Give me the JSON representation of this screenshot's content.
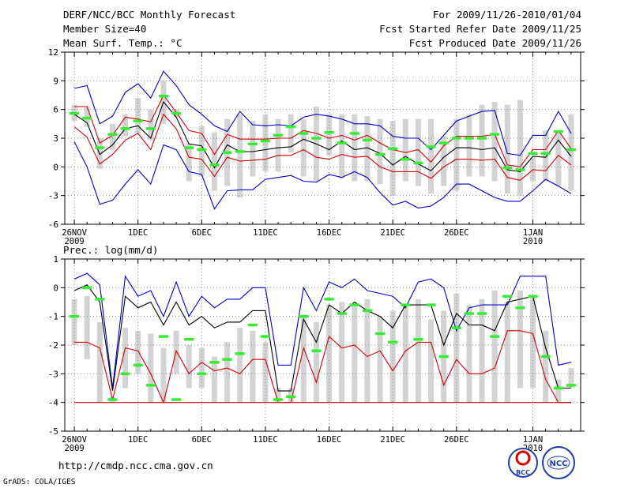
{
  "header": {
    "title": "DERF/NCC/BCC Monthly Forecast",
    "member_size": "Member Size=40",
    "variable": "Mean Surf. Temp.: °C",
    "period": "For 2009/11/26-2010/01/04",
    "start_date": "Fcst Started Refer Date 2009/11/25",
    "produced_date": "Fcst Produced Date 2009/11/26"
  },
  "footer": {
    "url": "http://cmdp.ncc.cma.gov.cn",
    "credit": "GrADS: COLA/IGES",
    "logo_bcc_text": "BCC",
    "logo_ncc_text": "NCC"
  },
  "colors": {
    "envelope": "#0000cc",
    "spread": "#d40000",
    "mean": "#000000",
    "bars": "#d3d3d3",
    "obs": "#33ee33",
    "grid": "#888888"
  },
  "chart_data": [
    {
      "type": "line",
      "title": "Mean Surf. Temp.: °C",
      "x_tick_labels": [
        "26NOV",
        "1DEC",
        "6DEC",
        "11DEC",
        "16DEC",
        "21DEC",
        "26DEC",
        "1JAN"
      ],
      "x_tick_sublabels": [
        "2009",
        "",
        "",
        "",
        "",
        "",
        "",
        "2010"
      ],
      "x_tick_days": [
        1,
        6,
        11,
        16,
        21,
        26,
        31,
        37
      ],
      "xlim": [
        0.25,
        40.75
      ],
      "ylim": [
        -6,
        12
      ],
      "y_ticks": [
        -6,
        -3,
        0,
        3,
        6,
        9,
        12
      ],
      "days": [
        1,
        2,
        3,
        4,
        5,
        6,
        7,
        8,
        9,
        10,
        11,
        12,
        13,
        14,
        15,
        16,
        17,
        18,
        19,
        20,
        21,
        22,
        23,
        24,
        25,
        26,
        27,
        28,
        29,
        30,
        31,
        32,
        33,
        34,
        35,
        36,
        37,
        38,
        39,
        40
      ],
      "series": [
        {
          "name": "max",
          "values": [
            8.2,
            8.5,
            4.5,
            5.3,
            7.8,
            8.7,
            7.2,
            10.0,
            8.5,
            6.5,
            5.5,
            4.3,
            3.7,
            5.8,
            4.4,
            4.3,
            4.4,
            4.3,
            5.2,
            5.5,
            5.3,
            5.0,
            4.5,
            4.5,
            4.3,
            3.2,
            3.0,
            3.0,
            1.8,
            3.3,
            4.8,
            5.3,
            5.8,
            5.9,
            1.4,
            1.2,
            3.3,
            3.3,
            5.8,
            3.5
          ]
        },
        {
          "name": "q_upper",
          "values": [
            6.3,
            6.3,
            2.5,
            3.3,
            5.2,
            5.0,
            4.7,
            7.5,
            5.7,
            3.8,
            3.5,
            1.3,
            3.4,
            2.9,
            2.9,
            2.9,
            3.0,
            3.0,
            3.8,
            3.5,
            3.0,
            3.3,
            2.8,
            3.3,
            2.5,
            1.8,
            1.5,
            1.8,
            0.5,
            2.2,
            3.2,
            3.2,
            3.2,
            3.4,
            0.2,
            0.0,
            1.8,
            1.8,
            3.8,
            1.9
          ]
        },
        {
          "name": "mean",
          "values": [
            5.5,
            4.6,
            1.3,
            2.3,
            4.0,
            4.3,
            3.0,
            6.8,
            5.2,
            2.4,
            2.2,
            -0.1,
            2.3,
            1.6,
            1.6,
            1.8,
            2.0,
            2.1,
            2.9,
            2.4,
            1.8,
            2.7,
            1.8,
            2.0,
            1.4,
            0.2,
            1.1,
            0.3,
            -0.4,
            1.0,
            2.0,
            2.0,
            1.8,
            2.0,
            -0.3,
            -0.5,
            1.1,
            1.0,
            2.8,
            1.1
          ]
        },
        {
          "name": "q_lower",
          "values": [
            4.2,
            3.1,
            0.3,
            1.3,
            2.8,
            3.5,
            1.8,
            5.5,
            4.0,
            1.0,
            0.8,
            -1.0,
            1.0,
            0.6,
            0.7,
            0.8,
            1.2,
            1.2,
            1.8,
            1.0,
            0.8,
            1.3,
            1.0,
            1.1,
            0.0,
            -0.5,
            -0.5,
            -0.5,
            -1.2,
            0.0,
            0.8,
            0.8,
            0.7,
            0.8,
            -1.1,
            -1.4,
            -0.3,
            -0.4,
            1.2,
            0.2
          ]
        },
        {
          "name": "min",
          "values": [
            2.6,
            0.0,
            -3.9,
            -3.5,
            -1.8,
            -0.3,
            -1.8,
            2.3,
            1.8,
            -0.5,
            -0.8,
            -4.4,
            -2.5,
            -2.4,
            -2.4,
            -1.3,
            -1.1,
            -0.9,
            -1.5,
            -1.6,
            -0.8,
            -1.1,
            -0.5,
            -1.1,
            -2.7,
            -4.0,
            -3.6,
            -4.3,
            -4.1,
            -3.2,
            -1.8,
            -1.8,
            -2.5,
            -3.2,
            -3.6,
            -3.6,
            -2.5,
            -1.3,
            -2.0,
            -2.8
          ]
        },
        {
          "name": "spread_low",
          "values": [
            4.8,
            4.2,
            -0.2,
            1.8,
            3.2,
            3.5,
            2.8,
            4.5,
            5.2,
            -1.5,
            -1.0,
            -2.5,
            -2.0,
            -3.2,
            -1.0,
            -0.5,
            -0.5,
            1.5,
            -1.0,
            -1.5,
            1.2,
            -1.2,
            -1.5,
            -1.5,
            -1.8,
            -3.0,
            -1.5,
            -2.0,
            -2.8,
            -2.0,
            -2.5,
            -1.0,
            -1.0,
            -1.5,
            -2.8,
            -3.0,
            -1.5,
            -1.5,
            -2.0,
            -2.5
          ]
        },
        {
          "name": "spread_high",
          "values": [
            6.5,
            6.3,
            3.0,
            4.5,
            5.5,
            7.2,
            6.0,
            9.0,
            6.0,
            2.5,
            4.3,
            3.6,
            5.0,
            5.5,
            4.8,
            5.5,
            5.0,
            5.5,
            5.0,
            6.3,
            5.5,
            5.5,
            5.5,
            5.3,
            5.0,
            4.8,
            5.0,
            5.0,
            5.0,
            3.2,
            5.0,
            5.5,
            6.5,
            6.8,
            6.5,
            7.0,
            1.0,
            3.8,
            3.8,
            5.5
          ]
        },
        {
          "name": "observed",
          "values": [
            5.6,
            5.1,
            2.0,
            3.4,
            4.0,
            4.8,
            4.0,
            7.4,
            5.6,
            2.0,
            1.8,
            0.2,
            1.5,
            1.6,
            2.4,
            2.7,
            3.3,
            4.2,
            3.5,
            3.0,
            3.6,
            2.5,
            3.5,
            2.8,
            1.3,
            1.9,
            0.8,
            0.4,
            2.1,
            2.5,
            3.0,
            3.0,
            3.0,
            3.4,
            -0.1,
            -0.3,
            1.4,
            1.4,
            3.7,
            1.8
          ]
        }
      ]
    },
    {
      "type": "line",
      "title": "Prec.: log(mm/d)",
      "x_tick_labels": [
        "26NOV",
        "1DEC",
        "6DEC",
        "11DEC",
        "16DEC",
        "21DEC",
        "26DEC",
        "1JAN"
      ],
      "x_tick_sublabels": [
        "2009",
        "",
        "",
        "",
        "",
        "",
        "",
        "2010"
      ],
      "x_tick_days": [
        1,
        6,
        11,
        16,
        21,
        26,
        31,
        37
      ],
      "xlim": [
        0.25,
        40.75
      ],
      "ylim": [
        -5,
        1
      ],
      "y_ticks": [
        -5,
        -4,
        -3,
        -2,
        -1,
        0,
        1
      ],
      "days": [
        1,
        2,
        3,
        4,
        5,
        6,
        7,
        8,
        9,
        10,
        11,
        12,
        13,
        14,
        15,
        16,
        17,
        18,
        19,
        20,
        21,
        22,
        23,
        24,
        25,
        26,
        27,
        28,
        29,
        30,
        31,
        32,
        33,
        34,
        35,
        36,
        37,
        38,
        39,
        40
      ],
      "series": [
        {
          "name": "max",
          "values": [
            0.3,
            0.5,
            0.1,
            -3.5,
            0.4,
            -0.3,
            -0.1,
            -1.0,
            0.2,
            -1.0,
            -0.3,
            -0.7,
            -0.4,
            -0.4,
            0.0,
            0.0,
            -2.7,
            -2.7,
            0.0,
            -0.8,
            0.2,
            0.0,
            0.3,
            -0.1,
            -0.2,
            -0.3,
            -0.7,
            0.2,
            0.3,
            0.0,
            -1.5,
            -0.7,
            -0.6,
            -0.6,
            -0.6,
            0.4,
            0.4,
            0.4,
            -2.7,
            -2.6
          ]
        },
        {
          "name": "mean",
          "values": [
            -0.1,
            0.1,
            -0.5,
            -3.6,
            -0.3,
            -0.7,
            -0.5,
            -1.3,
            -0.5,
            -1.3,
            -1.0,
            -1.4,
            -1.2,
            -1.2,
            -0.8,
            -0.8,
            -3.6,
            -3.6,
            -1.1,
            -1.9,
            -0.6,
            -0.9,
            -0.5,
            -0.8,
            -1.0,
            -1.4,
            -0.6,
            -0.6,
            -0.6,
            -2.0,
            -0.9,
            -1.3,
            -1.3,
            -1.5,
            -0.5,
            -0.4,
            -0.3,
            -2.1,
            -3.5,
            -3.5
          ]
        },
        {
          "name": "low",
          "values": [
            -1.9,
            -1.9,
            -2.1,
            -3.9,
            -2.1,
            -2.2,
            -3.0,
            -4.0,
            -2.2,
            -3.0,
            -2.6,
            -2.9,
            -2.8,
            -3.0,
            -2.5,
            -2.5,
            -4.0,
            -4.0,
            -2.1,
            -3.3,
            -1.7,
            -2.1,
            -2.0,
            -2.4,
            -2.2,
            -2.9,
            -2.2,
            -1.9,
            -1.9,
            -3.4,
            -2.5,
            -3.0,
            -3.0,
            -2.8,
            -1.5,
            -1.5,
            -1.6,
            -3.2,
            -4.0,
            -4.0
          ]
        },
        {
          "name": "spread_low",
          "values": [
            -2.0,
            -2.5,
            -4.0,
            -4.0,
            -3.5,
            -3.0,
            -4.0,
            -4.0,
            -3.0,
            -3.5,
            -3.5,
            -4.0,
            -4.0,
            -4.0,
            -4.0,
            -4.0,
            -4.0,
            -4.0,
            -4.0,
            -4.0,
            -4.0,
            -4.0,
            -4.0,
            -4.0,
            -4.0,
            -4.0,
            -4.0,
            -4.0,
            -4.0,
            -4.0,
            -4.0,
            -4.0,
            -4.0,
            -4.0,
            -4.0,
            -3.5,
            -3.5,
            -4.0,
            -4.0,
            -3.5
          ]
        },
        {
          "name": "spread_high",
          "values": [
            -0.4,
            -0.3,
            -1.2,
            -3.8,
            -1.4,
            -1.5,
            -1.6,
            -2.1,
            -1.5,
            -2.0,
            -2.1,
            -2.4,
            -1.9,
            -1.4,
            -1.5,
            -1.9,
            -3.5,
            -3.5,
            -1.0,
            -1.2,
            -0.6,
            -0.5,
            -0.6,
            -0.4,
            -1.0,
            -0.8,
            -0.6,
            -0.4,
            -1.1,
            -0.8,
            -0.2,
            -0.6,
            -0.4,
            -0.1,
            -0.5,
            -0.1,
            -0.3,
            -1.5,
            -3.2,
            -2.8
          ]
        },
        {
          "name": "observed",
          "values": [
            -1.0,
            0.0,
            -0.4,
            -3.9,
            -3.0,
            -2.7,
            -3.4,
            -1.7,
            -3.9,
            -1.8,
            -3.0,
            -2.6,
            -2.5,
            -2.3,
            -1.3,
            -1.7,
            -3.9,
            -3.8,
            -1.0,
            -2.2,
            -0.4,
            -0.9,
            -0.6,
            -0.8,
            -1.6,
            -1.9,
            -0.6,
            -1.8,
            -0.6,
            -2.4,
            -1.4,
            -0.9,
            -0.9,
            -1.7,
            -0.3,
            -0.7,
            -0.3,
            -2.4,
            -3.5,
            -3.4
          ]
        }
      ]
    }
  ]
}
